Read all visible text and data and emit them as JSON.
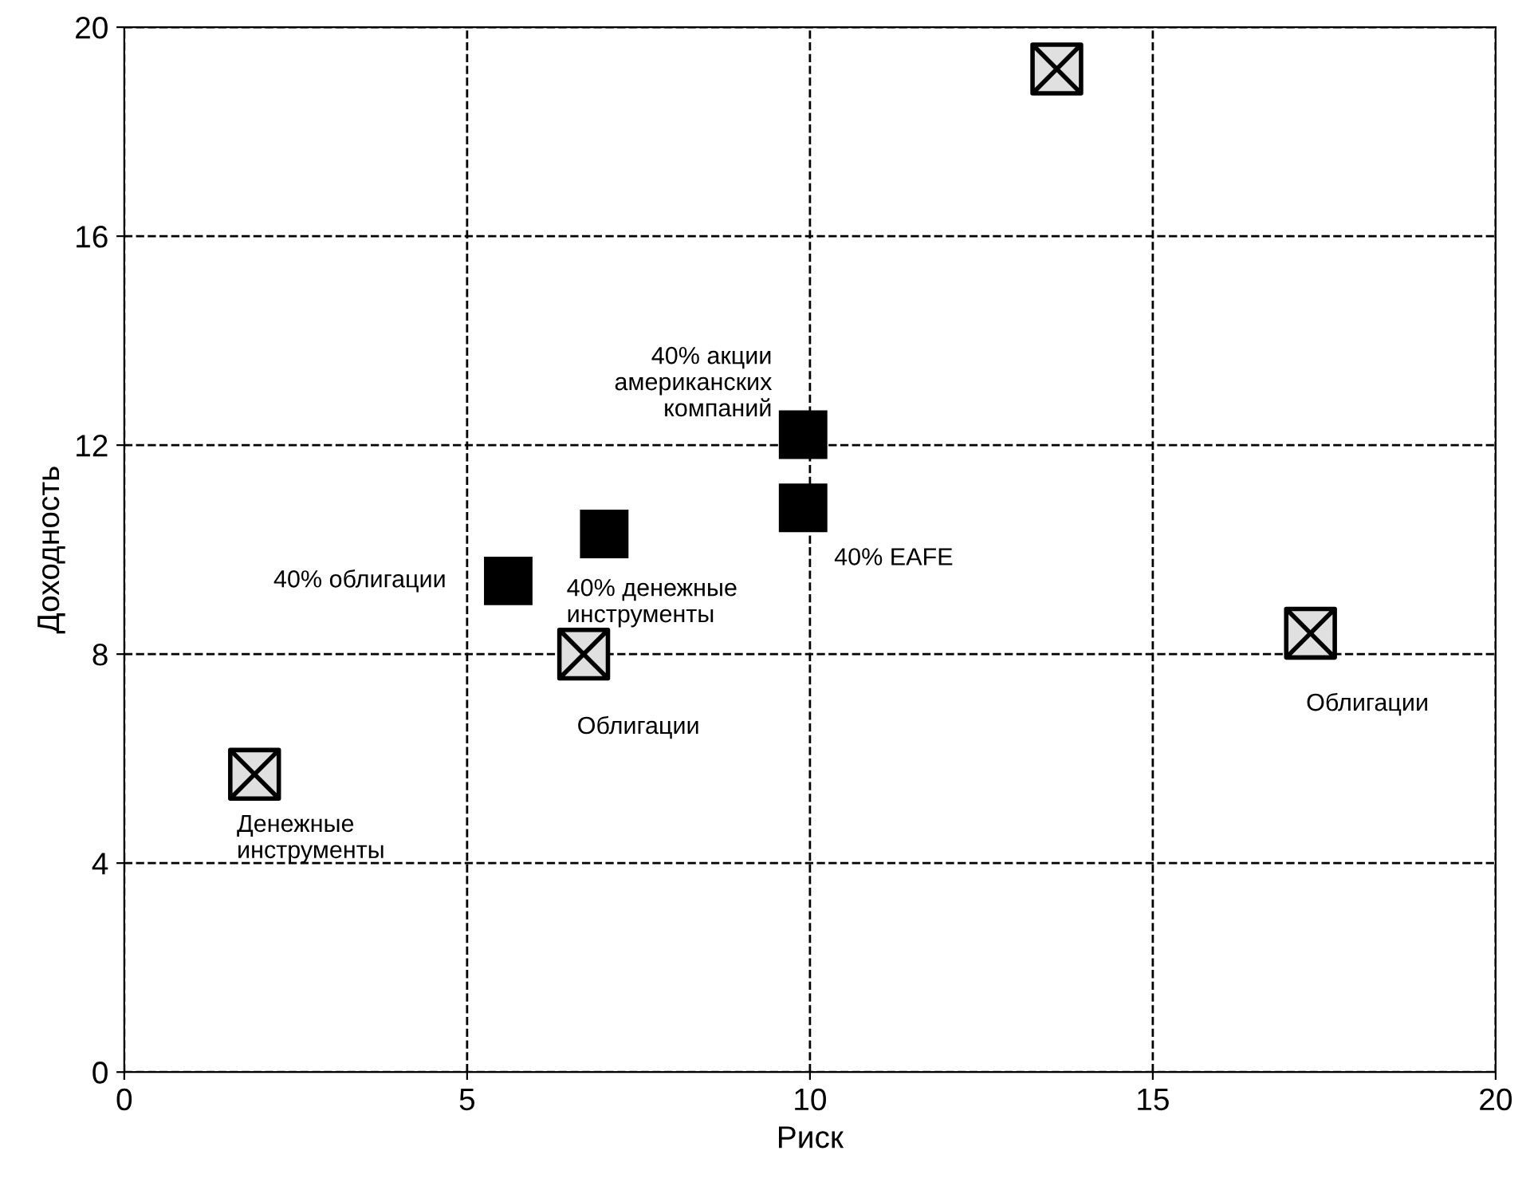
{
  "chart_data": {
    "type": "scatter",
    "xlabel": "Риск",
    "ylabel": "Доходность",
    "xlim": [
      0,
      20
    ],
    "ylim": [
      0,
      20
    ],
    "xticks": [
      0,
      5,
      10,
      15,
      20
    ],
    "yticks": [
      0,
      4,
      8,
      12,
      16,
      20
    ],
    "grid": true,
    "line_style": "dashed",
    "series": [
      {
        "color": "#000000",
        "marker": "cross",
        "x": [
          1.9,
          6.7,
          17.3,
          13.6
        ],
        "values": [
          5.7,
          8.0,
          8.4,
          19.2
        ]
      },
      {
        "color": "#000000",
        "marker": "square",
        "x": [
          5.6,
          7.0,
          9.9,
          9.9
        ],
        "values": [
          9.4,
          10.3,
          12.2,
          10.8
        ]
      }
    ],
    "annotations": [
      {
        "text": "Денежные\nинструменты",
        "x": 1.9,
        "y": 5.7
      },
      {
        "text": "Облигации",
        "x": 6.7,
        "y": 8.0
      },
      {
        "text": "Облигации",
        "x": 17.3,
        "y": 8.4
      },
      {
        "text": "40% облигации",
        "x": 5.6,
        "y": 9.4
      },
      {
        "text": "40% денежные\nинструменты",
        "x": 7.0,
        "y": 10.3
      },
      {
        "text": "40% акции\nамериканских\nкомпаний",
        "x": 9.9,
        "y": 12.2
      },
      {
        "text": "40% EAFE",
        "x": 9.9,
        "y": 10.8
      }
    ]
  }
}
